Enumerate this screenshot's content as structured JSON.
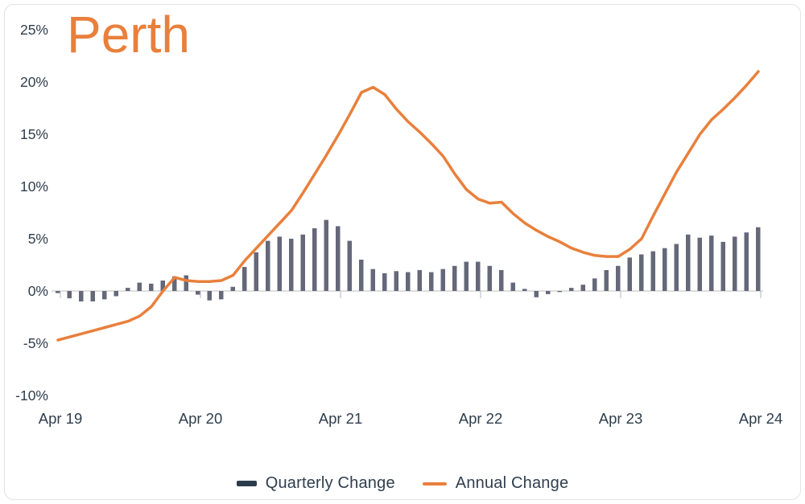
{
  "title": "Perth",
  "colors": {
    "accent_orange": "#E8803C",
    "bar_fill": "#646879",
    "legend_bar_swatch": "#2C3B4C",
    "axis_text": "#2F3E4D",
    "gridline": "#D4D4D4",
    "tick_mark": "#C9CCD1"
  },
  "legend": {
    "quarterly_label": "Quarterly Change",
    "annual_label": "Annual Change"
  },
  "axes": {
    "y_tick_labels": [
      "25%",
      "20%",
      "15%",
      "10%",
      "5%",
      "0%",
      "-5%",
      "-10%"
    ],
    "y_tick_values": [
      25,
      20,
      15,
      10,
      5,
      0,
      -5,
      -10
    ],
    "x_tick_labels": [
      "Apr 19",
      "Apr 20",
      "Apr 21",
      "Apr 22",
      "Apr 23",
      "Apr 24"
    ],
    "x_tick_month_indices": [
      0,
      12,
      24,
      36,
      48,
      60
    ]
  },
  "chart_data": {
    "type": "bar",
    "title": "Perth",
    "unit": "percent",
    "x_start": "Apr 19",
    "x_end": "Apr 24",
    "x_interval": "monthly",
    "ylim": [
      -10,
      25
    ],
    "grid": "zero-line only",
    "legend_position": "bottom-center",
    "series": [
      {
        "name": "Quarterly Change",
        "type": "bar",
        "values": [
          -0.2,
          -0.7,
          -1.0,
          -1.0,
          -0.8,
          -0.5,
          0.3,
          0.8,
          0.7,
          1.0,
          1.4,
          1.5,
          -0.35,
          -0.9,
          -0.8,
          0.4,
          2.3,
          3.7,
          4.8,
          5.2,
          5.0,
          5.4,
          6.0,
          6.8,
          6.2,
          4.8,
          3.0,
          2.1,
          1.7,
          1.9,
          1.8,
          2.0,
          1.8,
          2.1,
          2.4,
          2.8,
          2.8,
          2.4,
          2.0,
          0.8,
          0.2,
          -0.6,
          -0.3,
          -0.1,
          0.3,
          0.6,
          1.2,
          2.0,
          2.4,
          3.2,
          3.5,
          3.8,
          4.1,
          4.5,
          5.4,
          5.1,
          5.3,
          4.7,
          5.2,
          5.6,
          6.1
        ]
      },
      {
        "name": "Annual Change",
        "type": "line",
        "values": [
          -4.7,
          -4.4,
          -4.1,
          -3.8,
          -3.5,
          -3.2,
          -2.9,
          -2.4,
          -1.5,
          0.0,
          1.3,
          1.0,
          0.9,
          0.9,
          1.0,
          1.5,
          2.9,
          4.1,
          5.3,
          6.5,
          7.7,
          9.4,
          11.2,
          13.0,
          14.9,
          16.9,
          19.0,
          19.5,
          18.8,
          17.4,
          16.2,
          15.2,
          14.1,
          12.9,
          11.2,
          9.7,
          8.8,
          8.4,
          8.5,
          7.4,
          6.5,
          5.8,
          5.2,
          4.7,
          4.1,
          3.7,
          3.4,
          3.3,
          3.3,
          4.0,
          5.0,
          7.2,
          9.3,
          11.4,
          13.2,
          15.0,
          16.4,
          17.4,
          18.5,
          19.7,
          21.0
        ]
      }
    ]
  }
}
